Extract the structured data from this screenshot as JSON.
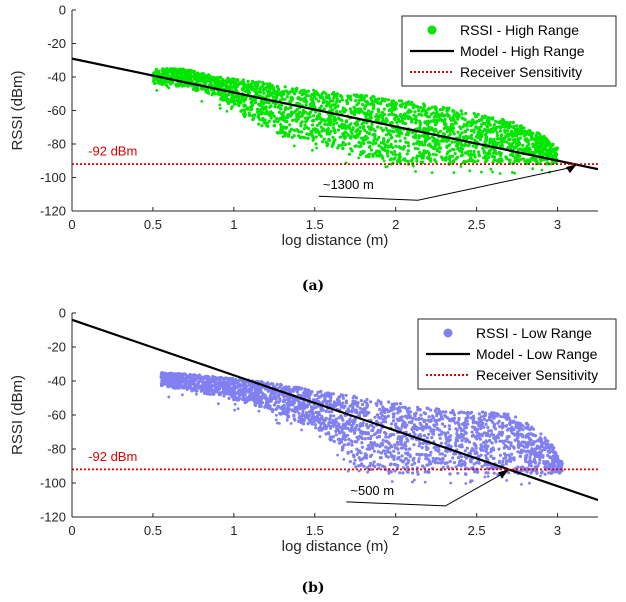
{
  "chart_data": [
    {
      "type": "scatter",
      "panel_label": "(a)",
      "xlabel": "log distance (m)",
      "ylabel": "RSSI (dBm)",
      "xlim": [
        0,
        3.25
      ],
      "ylim": [
        -120,
        0
      ],
      "xticks": [
        0,
        0.5,
        1,
        1.5,
        2,
        2.5,
        3
      ],
      "yticks": [
        0,
        -20,
        -40,
        -60,
        -80,
        -100,
        -120
      ],
      "xtick_labels": [
        "0",
        "0.5",
        "1",
        "1.5",
        "2",
        "2.5",
        "3"
      ],
      "ytick_labels": [
        "0",
        "-20",
        "-40",
        "-60",
        "-80",
        "-100",
        "-120"
      ],
      "legend_position": "top-right",
      "series": [
        {
          "name": "RSSI - High Range",
          "kind": "scatter",
          "color": "#00e600",
          "band": [
            [
              0.5,
              -35,
              -44
            ],
            [
              0.7,
              -35,
              -46
            ],
            [
              0.9,
              -40,
              -52
            ],
            [
              1.1,
              -42,
              -66
            ],
            [
              1.3,
              -45,
              -75
            ],
            [
              1.5,
              -48,
              -80
            ],
            [
              1.7,
              -50,
              -86
            ],
            [
              1.9,
              -52,
              -89
            ],
            [
              2.1,
              -55,
              -91
            ],
            [
              2.3,
              -58,
              -92
            ],
            [
              2.5,
              -62,
              -92
            ],
            [
              2.7,
              -66,
              -92
            ],
            [
              2.9,
              -74,
              -92
            ],
            [
              3.0,
              -82,
              -92
            ]
          ]
        },
        {
          "name": "Model - High Range",
          "kind": "line",
          "color": "#000000",
          "x": [
            0,
            3.25
          ],
          "y": [
            -29,
            -95
          ]
        },
        {
          "name": "Receiver Sensitivity",
          "kind": "hline",
          "color": "#e00000",
          "y": -92
        }
      ],
      "annotations": [
        {
          "text": "-92 dBm",
          "color": "#e00000",
          "x": 0.1,
          "y": -87
        },
        {
          "text": "~1300 m",
          "color": "#000000",
          "x": 1.55,
          "y": -107,
          "arrow_to": [
            3.12,
            -92
          ]
        }
      ]
    },
    {
      "type": "scatter",
      "panel_label": "(b)",
      "xlabel": "log distance (m)",
      "ylabel": "RSSI (dBm)",
      "xlim": [
        0,
        3.25
      ],
      "ylim": [
        -120,
        0
      ],
      "xticks": [
        0,
        0.5,
        1,
        1.5,
        2,
        2.5,
        3
      ],
      "yticks": [
        0,
        -20,
        -40,
        -60,
        -80,
        -100,
        -120
      ],
      "xtick_labels": [
        "0",
        "0.5",
        "1",
        "1.5",
        "2",
        "2.5",
        "3"
      ],
      "ytick_labels": [
        "0",
        "-20",
        "-40",
        "-60",
        "-80",
        "-100",
        "-120"
      ],
      "legend_position": "top-right",
      "series": [
        {
          "name": "RSSI - Low Range",
          "kind": "scatter",
          "color": "#8080f0",
          "band": [
            [
              0.55,
              -35,
              -43
            ],
            [
              0.75,
              -36,
              -46
            ],
            [
              0.95,
              -38,
              -50
            ],
            [
              1.15,
              -40,
              -55
            ],
            [
              1.35,
              -43,
              -62
            ],
            [
              1.55,
              -46,
              -70
            ],
            [
              1.75,
              -49,
              -92
            ],
            [
              1.95,
              -52,
              -94
            ],
            [
              2.15,
              -55,
              -95
            ],
            [
              2.35,
              -57,
              -95
            ],
            [
              2.55,
              -58,
              -95
            ],
            [
              2.75,
              -60,
              -95
            ],
            [
              2.95,
              -75,
              -95
            ],
            [
              3.03,
              -88,
              -94
            ]
          ]
        },
        {
          "name": "Model - Low Range",
          "kind": "line",
          "color": "#000000",
          "x": [
            0,
            3.25
          ],
          "y": [
            -4,
            -110
          ]
        },
        {
          "name": "Receiver Sensitivity",
          "kind": "hline",
          "color": "#e00000",
          "y": -92
        }
      ],
      "annotations": [
        {
          "text": "-92 dBm",
          "color": "#e00000",
          "x": 0.1,
          "y": -87
        },
        {
          "text": "~500 m",
          "color": "#000000",
          "x": 1.72,
          "y": -107,
          "arrow_to": [
            2.7,
            -92
          ]
        }
      ]
    }
  ]
}
